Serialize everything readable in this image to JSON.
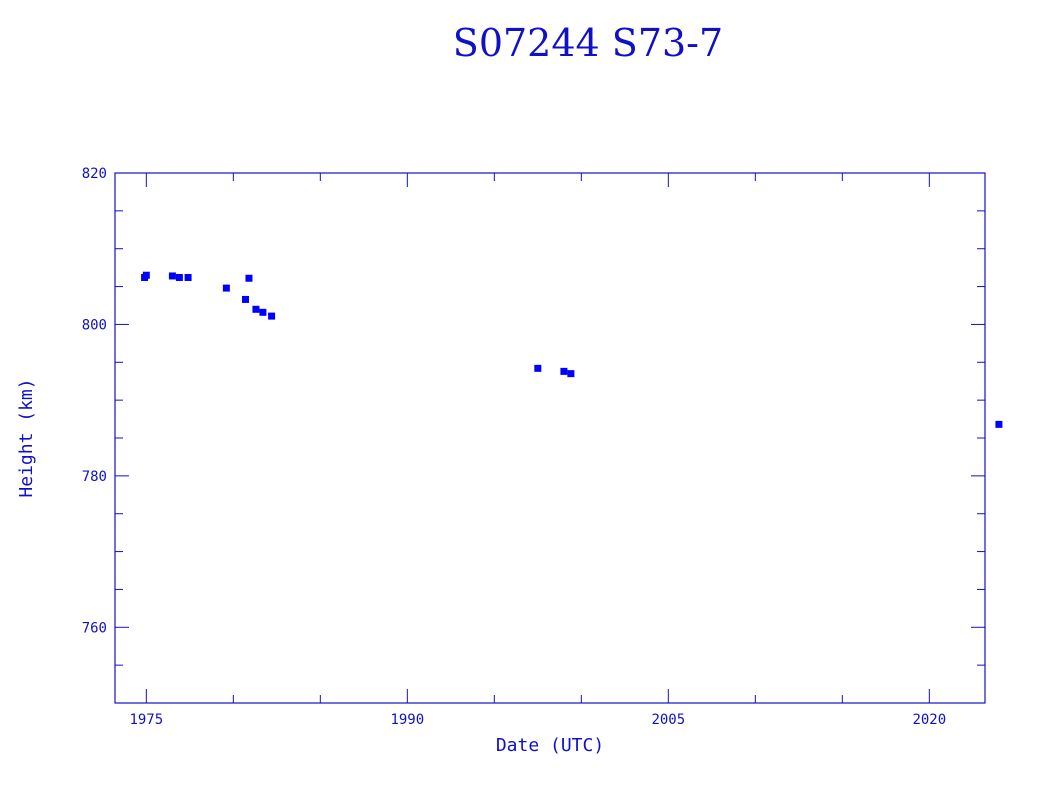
{
  "colors": {
    "ink": "#1010c8",
    "point": "#0000ff",
    "background": "#ffffff"
  },
  "chart_data": {
    "type": "scatter",
    "title": "S07244 S73-7",
    "xlabel": "Date (UTC)",
    "ylabel": "Height (km)",
    "xlim": [
      1973.2,
      2023.2
    ],
    "ylim": [
      750,
      820
    ],
    "x_ticks": [
      1975,
      1990,
      2005,
      2020
    ],
    "x_minor_step": 5,
    "y_ticks": [
      760,
      780,
      800,
      820
    ],
    "y_minor_step": 5,
    "grid": false,
    "marker": "square",
    "series": [
      {
        "points": [
          {
            "x": 1974.9,
            "y": 806.2
          },
          {
            "x": 1975.0,
            "y": 806.5
          },
          {
            "x": 1976.5,
            "y": 806.4
          },
          {
            "x": 1976.9,
            "y": 806.2
          },
          {
            "x": 1977.4,
            "y": 806.2
          },
          {
            "x": 1979.6,
            "y": 804.8
          },
          {
            "x": 1980.7,
            "y": 803.3
          },
          {
            "x": 1980.9,
            "y": 806.1
          },
          {
            "x": 1981.3,
            "y": 802.0
          },
          {
            "x": 1981.7,
            "y": 801.6
          },
          {
            "x": 1982.2,
            "y": 801.1
          },
          {
            "x": 1997.5,
            "y": 794.2
          },
          {
            "x": 1999.0,
            "y": 793.8
          },
          {
            "x": 1999.4,
            "y": 793.5
          },
          {
            "x": 2024.0,
            "y": 786.8
          }
        ]
      }
    ]
  }
}
